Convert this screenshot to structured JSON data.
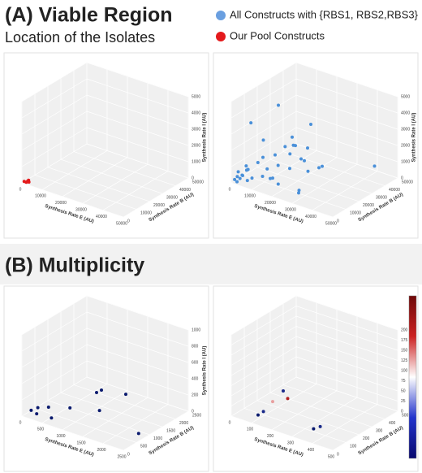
{
  "panel_a": {
    "title": "(A) Viable Region",
    "subtitle": "Location of the Isolates"
  },
  "legend": [
    {
      "name": "All Constructs with {RBS1, RBS2,RBS3}",
      "color": "#6a9fe0"
    },
    {
      "name": "Our Pool Constructs",
      "color": "#e41a1c"
    }
  ],
  "panel_b": {
    "title": "(B) Multiplicity"
  },
  "chart_data": [
    {
      "type": "scatter3d",
      "xlabel": "Synthesis Rate E (AU)",
      "ylabel": "Synthesis Rate B (AU)",
      "zlabel": "Synthesis Rate I (AU)",
      "xlim": [
        0,
        50000
      ],
      "xticks": [
        0,
        10000,
        20000,
        30000,
        40000,
        50000
      ],
      "ylim": [
        0,
        50000
      ],
      "yticks": [
        0,
        10000,
        20000,
        30000,
        40000,
        50000
      ],
      "zlim": [
        0,
        5000
      ],
      "zticks": [
        0,
        1000,
        2000,
        3000,
        4000,
        5000
      ],
      "series": [
        {
          "color": "#e41a1c",
          "x": [
            800,
            1500,
            2000,
            2500,
            1200
          ],
          "y": [
            500,
            1000,
            2000,
            1500,
            2500
          ],
          "z": [
            100,
            50,
            150,
            80,
            30
          ]
        }
      ]
    },
    {
      "type": "scatter3d",
      "xlabel": "Synthesis Rate E (AU)",
      "ylabel": "Synthesis Rate B (AU)",
      "zlabel": "Synthesis Rate I (AU)",
      "xlim": [
        0,
        50000
      ],
      "xticks": [
        0,
        10000,
        20000,
        30000,
        40000,
        50000
      ],
      "ylim": [
        0,
        50000
      ],
      "yticks": [
        0,
        10000,
        20000,
        30000,
        40000,
        50000
      ],
      "zlim": [
        0,
        5000
      ],
      "zticks": [
        0,
        1000,
        2000,
        3000,
        4000,
        5000
      ],
      "series": [
        {
          "color": "#4a90d9",
          "x": [
            1000,
            2000,
            3000,
            1500,
            2500,
            4000,
            5000,
            6000,
            3500,
            7000,
            8000,
            9000,
            10000,
            12000,
            14000,
            15000,
            16000,
            18000,
            20000,
            22000,
            24000,
            25000,
            27000,
            30000,
            2000,
            3000,
            4000,
            5000,
            12000,
            14000,
            16000,
            6000,
            9000,
            11000,
            20000,
            28000,
            32000,
            1500,
            2500,
            45000
          ],
          "y": [
            1000,
            1500,
            2000,
            3000,
            500,
            2500,
            4000,
            3000,
            6000,
            5000,
            8000,
            10000,
            12000,
            15000,
            10000,
            18000,
            20000,
            8000,
            25000,
            15000,
            30000,
            20000,
            10000,
            5000,
            12000,
            20000,
            30000,
            40000,
            35000,
            25000,
            5000,
            15000,
            22000,
            28000,
            30000,
            15000,
            20000,
            6000,
            9000,
            40000
          ],
          "z": [
            200,
            400,
            300,
            600,
            150,
            500,
            800,
            250,
            900,
            350,
            1200,
            300,
            700,
            1500,
            400,
            2000,
            600,
            300,
            1000,
            2500,
            500,
            800,
            200,
            400,
            3200,
            1800,
            3500,
            600,
            300,
            2200,
            700,
            1100,
            400,
            900,
            3000,
            2600,
            1400,
            250,
            500,
            1000
          ]
        }
      ]
    },
    {
      "type": "scatter3d",
      "xlabel": "Synthesis Rate E (AU)",
      "ylabel": "Synthesis Rate B (AU)",
      "zlabel": "Synthesis Rate I (AU)",
      "xlim": [
        0,
        2500
      ],
      "xticks": [
        0,
        500,
        1000,
        1500,
        2000,
        2500
      ],
      "ylim": [
        0,
        2500
      ],
      "yticks": [
        0,
        500,
        1000,
        1500,
        2000,
        2500
      ],
      "zlim": [
        0,
        1000
      ],
      "zticks": [
        0,
        200,
        400,
        600,
        800,
        1000
      ],
      "series": [
        {
          "color": "#0a1a6e",
          "x": [
            100,
            200,
            300,
            400,
            600,
            800,
            1000,
            1200,
            1400,
            1600,
            2300
          ],
          "y": [
            200,
            300,
            100,
            400,
            200,
            600,
            1500,
            1000,
            800,
            1500,
            900
          ],
          "z": [
            50,
            80,
            60,
            100,
            40,
            120,
            200,
            300,
            150,
            250,
            0
          ]
        }
      ]
    },
    {
      "type": "scatter3d",
      "xlabel": "Synthesis Rate E (AU)",
      "ylabel": "Synthesis Rate B (AU)",
      "zlabel": "Synthesis Rate I (AU)",
      "xlim": [
        0,
        500
      ],
      "xticks": [
        0,
        100,
        200,
        300,
        400,
        500
      ],
      "ylim": [
        0,
        500
      ],
      "yticks": [
        0,
        100,
        200,
        300,
        400,
        500
      ],
      "zlim": [
        0,
        200
      ],
      "zticks": [
        0,
        25,
        50,
        75,
        100,
        125,
        150,
        175,
        200
      ],
      "colorbar": [
        "#08086e",
        "#2233cc",
        "#ffffff",
        "#cc2222",
        "#6e0808"
      ],
      "series": [
        {
          "color": "#0a1a6e",
          "x": [
            100,
            120,
            140,
            150,
            160,
            380,
            400
          ],
          "y": [
            50,
            60,
            100,
            200,
            150,
            40,
            60
          ],
          "z": [
            10,
            20,
            40,
            30,
            60,
            25,
            30
          ],
          "colors": [
            "#0a1a6e",
            "#1a2a8a",
            "#e8a0a0",
            "#b22020",
            "#1a2a8a",
            "#0a1a6e",
            "#1a2a8a"
          ]
        }
      ]
    }
  ]
}
